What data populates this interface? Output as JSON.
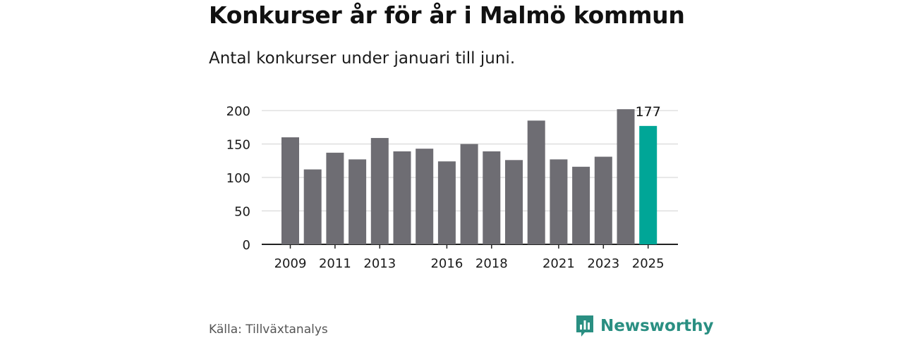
{
  "header": {
    "title": "Konkurser år för år i Malmö kommun",
    "subtitle": "Antal konkurser under januari till juni."
  },
  "footer": {
    "source": "Källa: Tillväxtanalys",
    "brand": "Newsworthy",
    "brand_icon": "newsworthy-logo-icon",
    "brand_color": "#2a8f82"
  },
  "chart_data": {
    "type": "bar",
    "title": "Konkurser år för år i Malmö kommun",
    "subtitle": "Antal konkurser under januari till juni.",
    "xlabel": "",
    "ylabel": "",
    "categories": [
      "2009",
      "2010",
      "2011",
      "2012",
      "2013",
      "2014",
      "2015",
      "2016",
      "2017",
      "2018",
      "2019",
      "2020",
      "2021",
      "2022",
      "2023",
      "2024",
      "2025"
    ],
    "values": [
      160,
      112,
      137,
      127,
      159,
      139,
      143,
      124,
      150,
      139,
      126,
      185,
      127,
      116,
      131,
      202,
      177
    ],
    "x_tick_labels": [
      "2009",
      "2011",
      "2013",
      "2016",
      "2018",
      "2021",
      "2023",
      "2025"
    ],
    "y_ticks": [
      0,
      50,
      100,
      150,
      200
    ],
    "ylim": [
      0,
      200
    ],
    "grid": true,
    "legend": "none",
    "data_labels": [
      {
        "category": "2025",
        "label": "177"
      }
    ],
    "colors": {
      "bar": "#6e6d73",
      "highlight": "#00a697",
      "grid": "#d9d9d9",
      "axis": "#222222"
    },
    "highlight_category": "2025"
  }
}
